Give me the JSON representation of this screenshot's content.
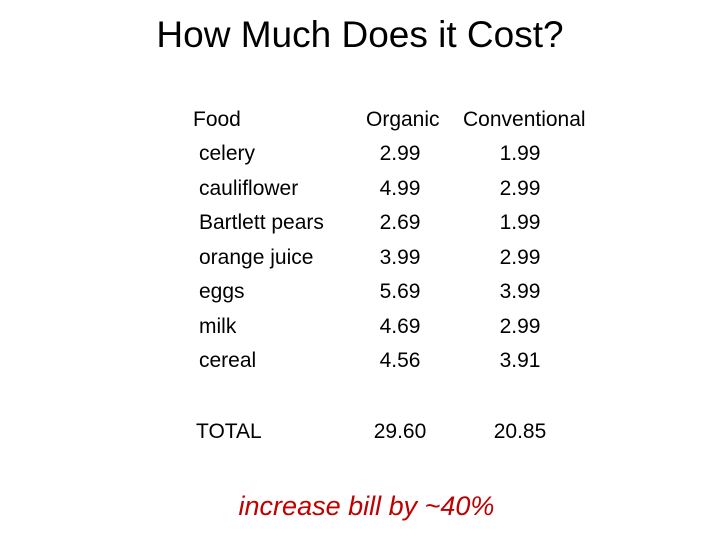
{
  "title": "How Much Does it Cost?",
  "table": {
    "headers": {
      "food": "Food",
      "organic": "Organic",
      "conventional": "Conventional"
    },
    "rows": [
      {
        "food": "celery",
        "organic": "2.99",
        "conventional": "1.99"
      },
      {
        "food": "cauliflower",
        "organic": "4.99",
        "conventional": "2.99"
      },
      {
        "food": "Bartlett pears",
        "organic": "2.69",
        "conventional": "1.99"
      },
      {
        "food": "orange juice",
        "organic": "3.99",
        "conventional": "2.99"
      },
      {
        "food": "eggs",
        "organic": "5.69",
        "conventional": "3.99"
      },
      {
        "food": "milk",
        "organic": "4.69",
        "conventional": "2.99"
      },
      {
        "food": "cereal",
        "organic": "4.56",
        "conventional": "3.91"
      }
    ],
    "total": {
      "label": "TOTAL",
      "organic": "29.60",
      "conventional": "20.85"
    }
  },
  "footnote": "increase bill by ~40%",
  "colors": {
    "footnote": "#c00000",
    "text": "#000000",
    "background": "#ffffff"
  }
}
